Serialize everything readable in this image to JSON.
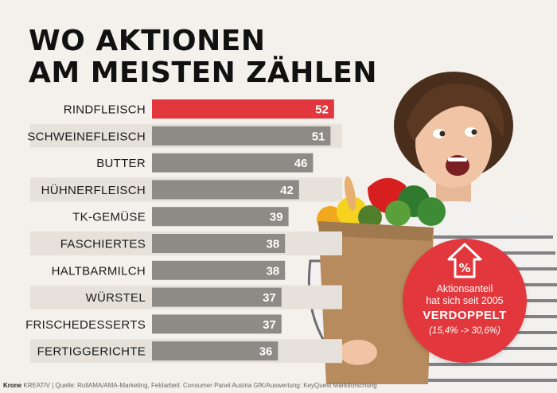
{
  "title_line1": "WO AKTIONEN",
  "title_line2": "AM MEISTEN ZÄHLEN",
  "chart_data": {
    "type": "bar",
    "orientation": "horizontal",
    "categories": [
      "RINDFLEISCH",
      "SCHWEINEFLEISCH",
      "BUTTER",
      "HÜHNERFLEISCH",
      "TK-GEMÜSE",
      "FASCHIERTES",
      "HALTBARMILCH",
      "WÜRSTEL",
      "FRISCHEDESSERTS",
      "FERTIGGERICHTE"
    ],
    "values": [
      52,
      51,
      46,
      42,
      39,
      38,
      38,
      37,
      37,
      36
    ],
    "highlight_index": 0,
    "data_labels": true,
    "grid": false
  },
  "colors": {
    "highlight_bar": "#e2373c",
    "bar": "#8e8a86",
    "row_band": "#e6e1da",
    "badge": "#e2373c",
    "background": "#f4f1ec"
  },
  "badge": {
    "icon": "house-percent-icon",
    "line1": "Aktionsanteil",
    "line2": "hat sich seit 2005",
    "line3": "VERDOPPELT",
    "line4": "(15,4% -> 30,6%)"
  },
  "footer": {
    "brand": "Krone",
    "rest": "KREATIV | Quelle:  RollAMA/AMA-Marketing, Feldarbeit: Consumer Panel Austria GfK/Auswertung: KeyQuest Marktforschung"
  }
}
